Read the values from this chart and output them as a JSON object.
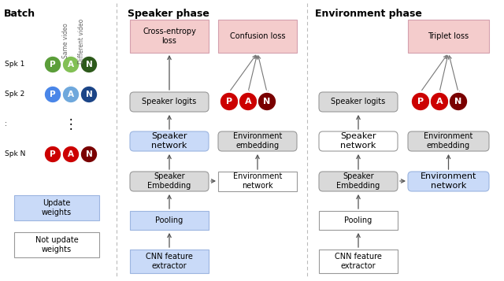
{
  "title_batch": "Batch",
  "title_speaker": "Speaker phase",
  "title_environment": "Environment phase",
  "bg_color": "#ffffff",
  "light_blue": "#c9daf8",
  "light_pink": "#f4cccc",
  "light_gray": "#d9d9d9",
  "white": "#ffffff",
  "green_p": "#5b9e3a",
  "green_a": "#82c055",
  "green_n": "#2d5a1b",
  "blue_p": "#4a86e8",
  "blue_a": "#6fa8dc",
  "blue_n": "#1c4587",
  "red_p": "#cc0000",
  "red_a": "#cc0000",
  "red_n": "#7a0000",
  "sep_color": "#bbbbbb",
  "arrow_color": "#555555",
  "edge_gray": "#999999",
  "edge_blue": "#9cb5e0",
  "edge_pink": "#d4a0ae"
}
